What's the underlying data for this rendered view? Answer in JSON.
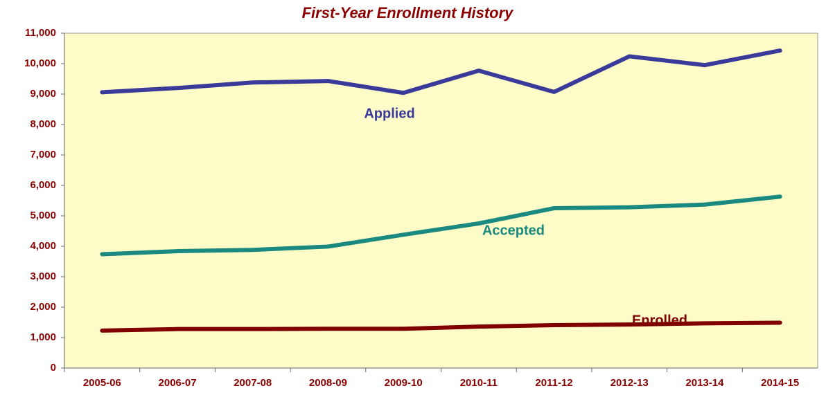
{
  "chart_data": {
    "type": "line",
    "title": "First-Year Enrollment History",
    "categories": [
      "2005-06",
      "2006-07",
      "2007-08",
      "2008-09",
      "2009-10",
      "2010-11",
      "2011-12",
      "2012-13",
      "2013-14",
      "2014-15"
    ],
    "series": [
      {
        "name": "Applied",
        "color": "#3a3a9a",
        "values": [
          9060,
          9200,
          9380,
          9430,
          9040,
          9770,
          9070,
          10240,
          9950,
          10430
        ]
      },
      {
        "name": "Accepted",
        "color": "#1a8a80",
        "values": [
          3740,
          3840,
          3880,
          3990,
          4380,
          4750,
          5250,
          5280,
          5370,
          5630
        ]
      },
      {
        "name": "Enrolled",
        "color": "#800000",
        "values": [
          1230,
          1280,
          1280,
          1290,
          1290,
          1360,
          1410,
          1430,
          1470,
          1490
        ]
      }
    ],
    "ylim": [
      0,
      11000
    ],
    "yticks": [
      0,
      {
        "value": 1000,
        "label": "1,000"
      },
      {
        "value": 2000,
        "label": "2,000"
      },
      {
        "value": 3000,
        "label": "3,000"
      },
      {
        "value": 4000,
        "label": "4,000"
      },
      {
        "value": 5000,
        "label": "5,000"
      },
      {
        "value": 6000,
        "label": "6,000"
      },
      {
        "value": 7000,
        "label": "7,000"
      },
      {
        "value": 8000,
        "label": "8,000"
      },
      {
        "value": 9000,
        "label": "9,000"
      },
      {
        "value": 10000,
        "label": "10,000"
      },
      {
        "value": 11000,
        "label": "11,000"
      }
    ],
    "grid": false
  }
}
